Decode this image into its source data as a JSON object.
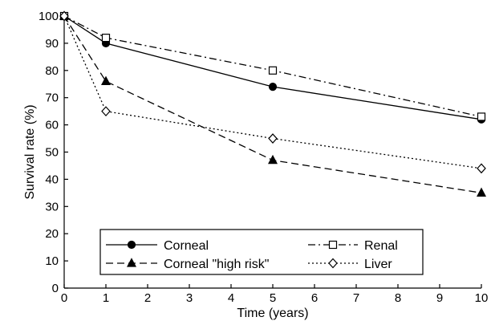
{
  "chart_data": {
    "type": "line",
    "xlabel": "Time (years)",
    "ylabel": "Survival rate (%)",
    "xlim": [
      0,
      10
    ],
    "ylim": [
      0,
      100
    ],
    "xticks": [
      "0",
      "1",
      "2",
      "3",
      "4",
      "5",
      "6",
      "7",
      "8",
      "9",
      "10"
    ],
    "yticks": [
      "0",
      "10",
      "20",
      "30",
      "40",
      "50",
      "60",
      "70",
      "80",
      "90",
      "100"
    ],
    "grid": false,
    "legend_position": "bottom-left",
    "series": [
      {
        "name": "Corneal",
        "line_style": "solid",
        "marker": "filled-circle",
        "color": "#000000",
        "points": [
          {
            "x": 0,
            "y": 100
          },
          {
            "x": 1,
            "y": 90
          },
          {
            "x": 5,
            "y": 74
          },
          {
            "x": 10,
            "y": 62
          }
        ]
      },
      {
        "name": "Renal",
        "line_style": "dash-dot",
        "marker": "open-square",
        "color": "#000000",
        "points": [
          {
            "x": 0,
            "y": 100
          },
          {
            "x": 1,
            "y": 92
          },
          {
            "x": 5,
            "y": 80
          },
          {
            "x": 10,
            "y": 63
          }
        ]
      },
      {
        "name": "Corneal \"high risk\"",
        "line_style": "dashed",
        "marker": "filled-triangle",
        "color": "#000000",
        "points": [
          {
            "x": 0,
            "y": 100
          },
          {
            "x": 1,
            "y": 76
          },
          {
            "x": 5,
            "y": 47
          },
          {
            "x": 10,
            "y": 35
          }
        ]
      },
      {
        "name": "Liver",
        "line_style": "dotted",
        "marker": "open-diamond",
        "color": "#000000",
        "points": [
          {
            "x": 0,
            "y": 100
          },
          {
            "x": 1,
            "y": 65
          },
          {
            "x": 5,
            "y": 55
          },
          {
            "x": 10,
            "y": 44
          }
        ]
      }
    ]
  }
}
